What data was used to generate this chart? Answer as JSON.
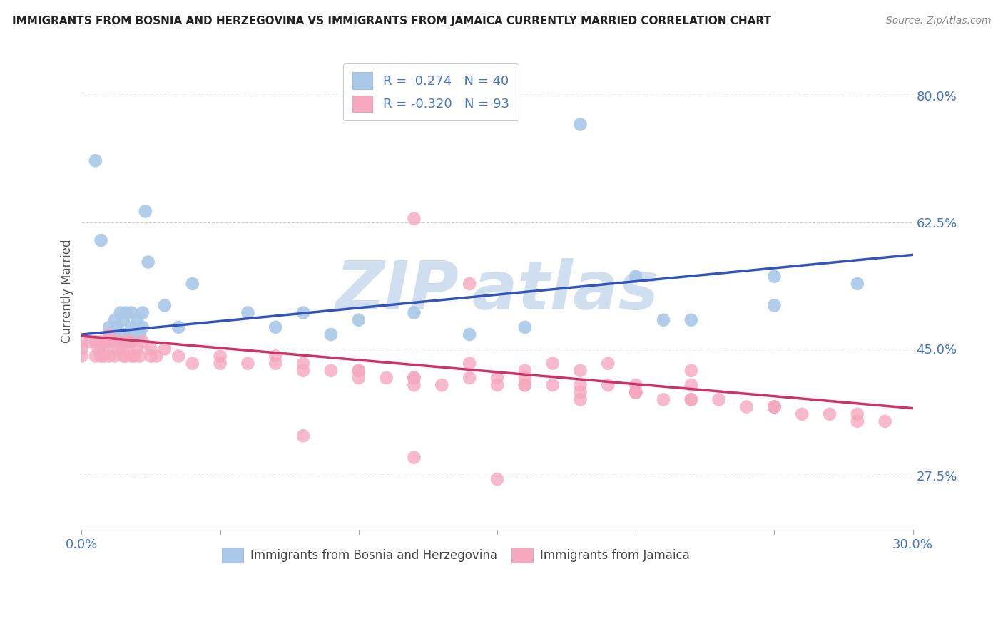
{
  "title": "IMMIGRANTS FROM BOSNIA AND HERZEGOVINA VS IMMIGRANTS FROM JAMAICA CURRENTLY MARRIED CORRELATION CHART",
  "source": "Source: ZipAtlas.com",
  "ylabel": "Currently Married",
  "xlim": [
    0.0,
    0.3
  ],
  "ylim": [
    0.2,
    0.86
  ],
  "yticks": [
    0.275,
    0.45,
    0.625,
    0.8
  ],
  "ytick_labels": [
    "27.5%",
    "45.0%",
    "62.5%",
    "80.0%"
  ],
  "xtick_vals": [
    0.0,
    0.05,
    0.1,
    0.15,
    0.2,
    0.25,
    0.3
  ],
  "xtick_labels": [
    "0.0%",
    "",
    "",
    "",
    "",
    "",
    "30.0%"
  ],
  "bosnia_R": 0.274,
  "bosnia_N": 40,
  "jamaica_R": -0.32,
  "jamaica_N": 93,
  "bosnia_color": "#aac8e8",
  "jamaica_color": "#f5a8be",
  "bosnia_line_color": "#3355bb",
  "jamaica_line_color": "#cc3366",
  "legend_bosnia": "Immigrants from Bosnia and Herzegovina",
  "legend_jamaica": "Immigrants from Jamaica",
  "background_color": "#ffffff",
  "label_color": "#4477cc",
  "watermark_color": "#d0dff0",
  "bosnia_x": [
    0.005,
    0.007,
    0.01,
    0.01,
    0.012,
    0.012,
    0.013,
    0.014,
    0.015,
    0.015,
    0.016,
    0.016,
    0.017,
    0.018,
    0.018,
    0.019,
    0.02,
    0.021,
    0.022,
    0.022,
    0.023,
    0.024,
    0.03,
    0.035,
    0.04,
    0.06,
    0.07,
    0.08,
    0.09,
    0.1,
    0.12,
    0.14,
    0.16,
    0.18,
    0.2,
    0.22,
    0.25,
    0.25,
    0.28,
    0.21
  ],
  "bosnia_y": [
    0.71,
    0.6,
    0.47,
    0.48,
    0.47,
    0.49,
    0.48,
    0.5,
    0.46,
    0.49,
    0.47,
    0.5,
    0.46,
    0.48,
    0.5,
    0.47,
    0.49,
    0.47,
    0.5,
    0.48,
    0.64,
    0.57,
    0.51,
    0.48,
    0.54,
    0.5,
    0.48,
    0.5,
    0.47,
    0.49,
    0.5,
    0.47,
    0.48,
    0.76,
    0.55,
    0.49,
    0.51,
    0.55,
    0.54,
    0.49
  ],
  "jamaica_x": [
    0.0,
    0.0,
    0.0,
    0.003,
    0.005,
    0.005,
    0.006,
    0.007,
    0.007,
    0.008,
    0.008,
    0.009,
    0.01,
    0.01,
    0.01,
    0.012,
    0.012,
    0.013,
    0.014,
    0.015,
    0.015,
    0.016,
    0.016,
    0.017,
    0.018,
    0.018,
    0.019,
    0.02,
    0.021,
    0.022,
    0.025,
    0.025,
    0.027,
    0.03,
    0.035,
    0.04,
    0.05,
    0.05,
    0.06,
    0.07,
    0.07,
    0.08,
    0.09,
    0.1,
    0.1,
    0.11,
    0.12,
    0.12,
    0.13,
    0.14,
    0.15,
    0.16,
    0.17,
    0.18,
    0.19,
    0.2,
    0.21,
    0.22,
    0.23,
    0.24,
    0.25,
    0.26,
    0.27,
    0.28,
    0.29,
    0.14,
    0.17,
    0.19,
    0.22,
    0.14,
    0.16,
    0.18,
    0.2,
    0.22,
    0.25,
    0.28,
    0.12,
    0.15,
    0.18,
    0.08,
    0.1,
    0.12,
    0.16,
    0.2,
    0.25,
    0.18,
    0.22,
    0.25,
    0.16,
    0.2,
    0.12,
    0.08,
    0.15
  ],
  "jamaica_y": [
    0.46,
    0.44,
    0.45,
    0.46,
    0.44,
    0.46,
    0.45,
    0.44,
    0.46,
    0.45,
    0.44,
    0.46,
    0.47,
    0.46,
    0.44,
    0.46,
    0.44,
    0.45,
    0.46,
    0.45,
    0.44,
    0.46,
    0.44,
    0.46,
    0.44,
    0.46,
    0.44,
    0.45,
    0.44,
    0.46,
    0.45,
    0.44,
    0.44,
    0.45,
    0.44,
    0.43,
    0.43,
    0.44,
    0.43,
    0.44,
    0.43,
    0.42,
    0.42,
    0.42,
    0.41,
    0.41,
    0.41,
    0.63,
    0.4,
    0.41,
    0.41,
    0.4,
    0.4,
    0.4,
    0.4,
    0.39,
    0.38,
    0.38,
    0.38,
    0.37,
    0.37,
    0.36,
    0.36,
    0.35,
    0.35,
    0.54,
    0.43,
    0.43,
    0.42,
    0.43,
    0.42,
    0.42,
    0.4,
    0.4,
    0.37,
    0.36,
    0.4,
    0.4,
    0.39,
    0.43,
    0.42,
    0.41,
    0.41,
    0.39,
    0.37,
    0.38,
    0.38,
    0.37,
    0.4,
    0.39,
    0.3,
    0.33,
    0.27
  ]
}
